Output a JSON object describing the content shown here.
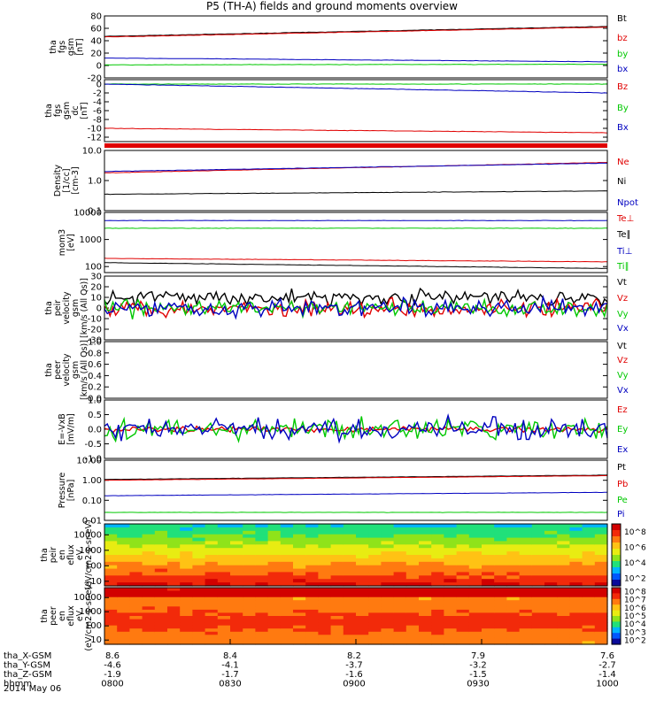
{
  "title": "P5 (TH-A) fields and ground moments overview",
  "date_label": "2014 May 06",
  "colors": {
    "black": "#000000",
    "red": "#e00000",
    "green": "#00c800",
    "blue": "#0000c0"
  },
  "chart_data": [
    {
      "type": "line",
      "ylabel": [
        "tha",
        "fgs",
        "gsm",
        "[nT]"
      ],
      "ylim": [
        -20,
        80
      ],
      "yticks": [
        "-20",
        "0",
        "20",
        "40",
        "60",
        "80"
      ],
      "series": [
        {
          "name": "Bt",
          "color": "black",
          "start": 47,
          "end": 63
        },
        {
          "name": "bz",
          "color": "red",
          "start": 46,
          "end": 62
        },
        {
          "name": "by",
          "color": "green",
          "start": 1,
          "end": 2
        },
        {
          "name": "bx",
          "color": "blue",
          "start": 12,
          "end": 6
        }
      ]
    },
    {
      "type": "line",
      "ylabel": [
        "tha",
        "fgs",
        "gsm",
        "dc",
        "[nT]"
      ],
      "ylim": [
        -13,
        1
      ],
      "yticks": [
        "-12",
        "-10",
        "-8",
        "-6",
        "-4",
        "-2",
        "0"
      ],
      "series": [
        {
          "name": "Bz",
          "color": "red",
          "start": -10,
          "end": -11
        },
        {
          "name": "By",
          "color": "green",
          "start": 0,
          "end": 0
        },
        {
          "name": "Bx",
          "color": "blue",
          "start": 0,
          "end": -2
        }
      ]
    },
    {
      "type": "line",
      "scale": "log",
      "ylabel": [
        "Density",
        "[1/cc]",
        "[cm-3]"
      ],
      "ylim": [
        0.1,
        10
      ],
      "yticks": [
        "0.1",
        "1.0",
        "10.0"
      ],
      "series": [
        {
          "name": "Ne",
          "color": "red",
          "start": 1.8,
          "end": 4
        },
        {
          "name": "Ni",
          "color": "black",
          "start": 0.35,
          "end": 0.45
        },
        {
          "name": "Npot",
          "color": "blue",
          "start": 2,
          "end": 3.8
        }
      ]
    },
    {
      "type": "line",
      "scale": "log",
      "ylabel": [
        "mom3",
        "[eV]"
      ],
      "ylim": [
        60,
        10000
      ],
      "yticks": [
        "100",
        "1000",
        "10000"
      ],
      "series": [
        {
          "name": "Te⊥",
          "color": "red",
          "start": 200,
          "end": 150
        },
        {
          "name": "Te∥",
          "color": "black",
          "start": 140,
          "end": 85
        },
        {
          "name": "Ti⊥",
          "color": "blue",
          "start": 5000,
          "end": 5000
        },
        {
          "name": "Ti∥",
          "color": "green",
          "start": 2600,
          "end": 2600
        }
      ]
    },
    {
      "type": "line",
      "ylabel": [
        "tha",
        "peir",
        "velocity",
        "gsm",
        "[km/s (All Qs)]"
      ],
      "ylim": [
        -30,
        30
      ],
      "yticks": [
        "-30",
        "-20",
        "-10",
        "0",
        "10",
        "20",
        "30"
      ],
      "series": [
        {
          "name": "Vt",
          "color": "black",
          "start": 10,
          "end": 10
        },
        {
          "name": "Vz",
          "color": "red",
          "start": 0,
          "end": 0
        },
        {
          "name": "Vy",
          "color": "green",
          "start": 0,
          "end": 0
        },
        {
          "name": "Vx",
          "color": "blue",
          "start": 0,
          "end": 0
        }
      ]
    },
    {
      "type": "line",
      "ylabel": [
        "tha",
        "peer",
        "velocity",
        "gsm",
        "[km/s (All Qs)]"
      ],
      "ylim": [
        0,
        1
      ],
      "yticks": [
        "0.0",
        "0.2",
        "0.4",
        "0.6",
        "0.8",
        "1.0"
      ],
      "series": [
        {
          "name": "Vt",
          "color": "black"
        },
        {
          "name": "Vz",
          "color": "red"
        },
        {
          "name": "Vy",
          "color": "green"
        },
        {
          "name": "Vx",
          "color": "blue"
        }
      ]
    },
    {
      "type": "line",
      "ylabel": [
        "E=-VxB",
        "[mV/m]"
      ],
      "ylim": [
        -1,
        1
      ],
      "yticks": [
        "-1.0",
        "-0.5",
        "0.0",
        "0.5",
        "1.0"
      ],
      "series": [
        {
          "name": "Ez",
          "color": "red",
          "start": 0,
          "end": 0
        },
        {
          "name": "Ey",
          "color": "green",
          "start": 0,
          "end": 0
        },
        {
          "name": "Ex",
          "color": "blue",
          "start": 0,
          "end": 0
        }
      ]
    },
    {
      "type": "line",
      "scale": "log",
      "ylabel": [
        "Pressure",
        "[nPa]"
      ],
      "ylim": [
        0.01,
        10
      ],
      "yticks": [
        "0.01",
        "0.10",
        "1.00",
        "10.00"
      ],
      "series": [
        {
          "name": "Pt",
          "color": "black",
          "start": 1.1,
          "end": 1.8
        },
        {
          "name": "Pb",
          "color": "red",
          "start": 1.0,
          "end": 1.7
        },
        {
          "name": "Pe",
          "color": "green",
          "start": 0.025,
          "end": 0.025
        },
        {
          "name": "Pi",
          "color": "blue",
          "start": 0.17,
          "end": 0.25
        }
      ]
    },
    {
      "type": "heatmap",
      "ylabel": [
        "tha",
        "peir",
        "en",
        "eflux",
        "eV",
        "(eV/cm2-s-sr-eV)"
      ],
      "yticks": [
        "10",
        "100",
        "1000",
        "10000"
      ],
      "colorbar_ticks": [
        "10^2",
        "10^4",
        "10^6",
        "10^8"
      ]
    },
    {
      "type": "heatmap",
      "ylabel": [
        "tha",
        "peer",
        "en",
        "eflux",
        "eV",
        "(eV/cm2-s-sr-eV)"
      ],
      "yticks": [
        "10",
        "100",
        "1000",
        "10000"
      ],
      "colorbar_ticks": [
        "10^2",
        "10^3",
        "10^4",
        "10^5",
        "10^6",
        "10^7",
        "10^8"
      ]
    }
  ],
  "x_axis": {
    "rows": [
      {
        "label": "tha_X-GSM",
        "values": [
          "8.6",
          "8.4",
          "8.2",
          "7.9",
          "7.6"
        ]
      },
      {
        "label": "tha_Y-GSM",
        "values": [
          "-4.6",
          "-4.1",
          "-3.7",
          "-3.2",
          "-2.7"
        ]
      },
      {
        "label": "tha_Z-GSM",
        "values": [
          "-1.9",
          "-1.7",
          "-1.6",
          "-1.5",
          "-1.4"
        ]
      },
      {
        "label": "hhmm",
        "values": [
          "0800",
          "0830",
          "0900",
          "0930",
          "1000"
        ]
      }
    ]
  }
}
